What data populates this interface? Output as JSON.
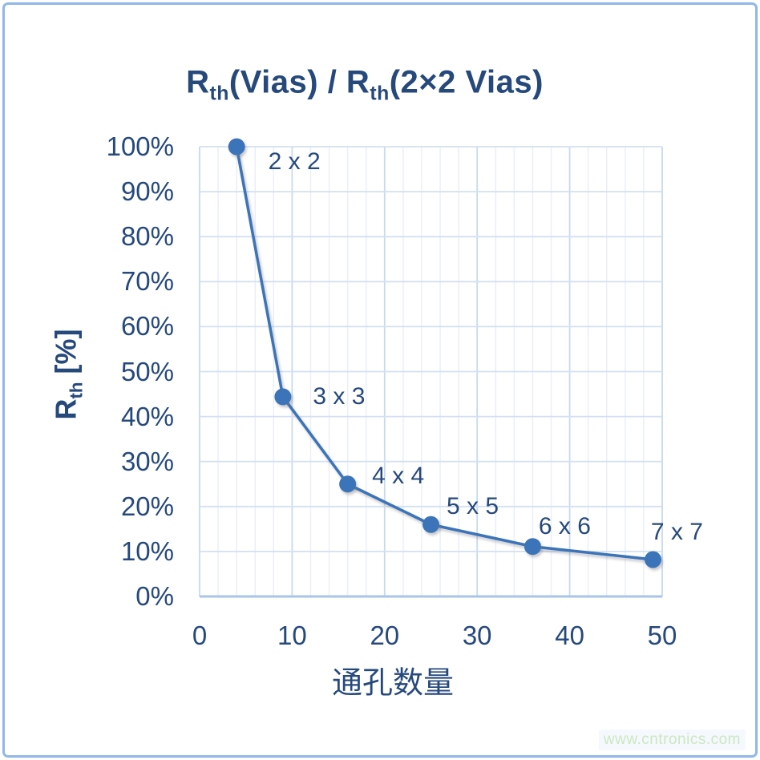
{
  "header": {
    "title_segments": [
      {
        "t": "R"
      },
      {
        "t": "th",
        "sub": true
      },
      {
        "t": "(Vias) / R"
      },
      {
        "t": "th",
        "sub": true
      },
      {
        "t": "(2×2 Vias)"
      }
    ]
  },
  "y_axis_title_segments": [
    {
      "t": "R"
    },
    {
      "t": "th",
      "sub": true
    },
    {
      "t": " [%]"
    }
  ],
  "watermark": {
    "text": "www.cntronics.com",
    "color": "#CBE7C3"
  },
  "colors": {
    "text_navy": "#26497C",
    "frame_border": "#8FB7E8",
    "grid_minor": "#E9EFF9",
    "grid_major": "#C9D9EF",
    "grid_horizontal": "#D4E0F2",
    "axis_line": "#A9C4E9"
  },
  "chart_data": {
    "type": "line",
    "title": "Rth(Vias) / Rth(2×2 Vias)",
    "xlabel": "通孔数量",
    "ylabel": "Rth [%]",
    "xlim": [
      0,
      50
    ],
    "ylim": [
      0,
      100
    ],
    "x_ticks": [
      0,
      10,
      20,
      30,
      40,
      50
    ],
    "y_ticks": [
      0,
      10,
      20,
      30,
      40,
      50,
      60,
      70,
      80,
      90,
      100
    ],
    "y_tick_suffix": "%",
    "grid": {
      "x_minor_step": 2,
      "x_major_step": 10,
      "y_major_step": 10,
      "grid_on": true
    },
    "legend": false,
    "series": [
      {
        "name": "Rth(Vias) / Rth(2x2 Vias)",
        "color": "#3B74B9",
        "points": [
          {
            "x": 4,
            "y": 100,
            "label": "2 x 2",
            "label_dx": 72,
            "label_dy": 19
          },
          {
            "x": 9,
            "y": 44.4,
            "label": "3 x 3",
            "label_dx": 70,
            "label_dy": 0
          },
          {
            "x": 16,
            "y": 25,
            "label": "4 x 4",
            "label_dx": 63,
            "label_dy": -10
          },
          {
            "x": 25,
            "y": 16,
            "label": "5 x 5",
            "label_dx": 52,
            "label_dy": -22
          },
          {
            "x": 36,
            "y": 11.1,
            "label": "6 x 6",
            "label_dx": 40,
            "label_dy": -25
          },
          {
            "x": 49,
            "y": 8.2,
            "label": "7 x 7",
            "label_dx": 30,
            "label_dy": -34
          }
        ]
      }
    ]
  }
}
